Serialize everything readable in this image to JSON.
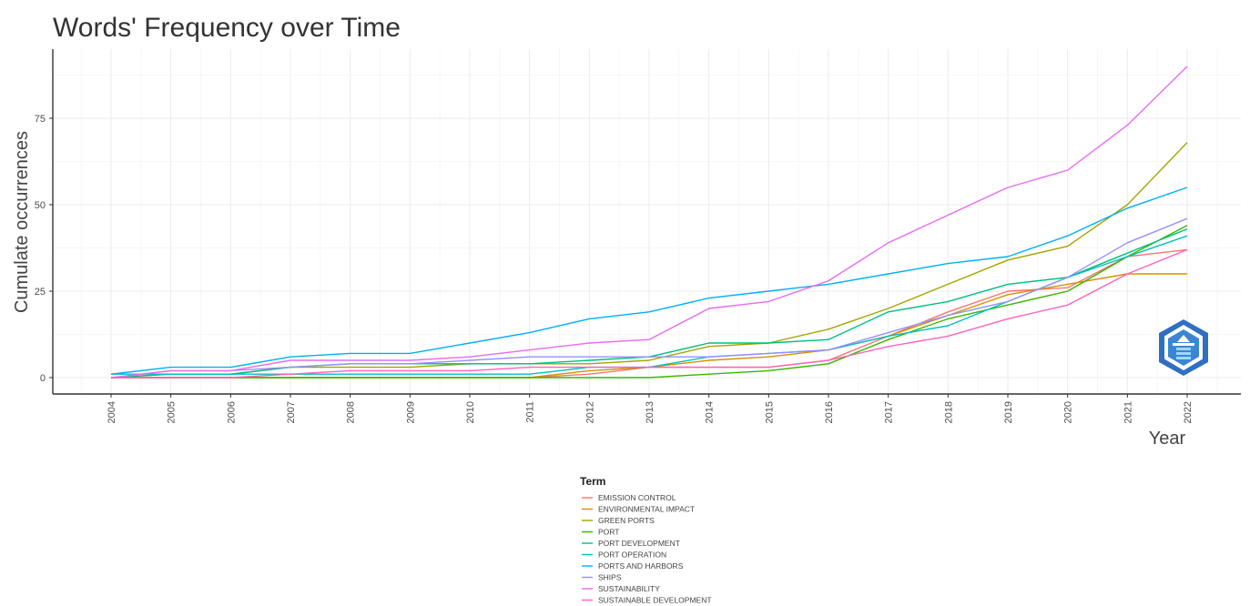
{
  "chart_data": {
    "type": "line",
    "title": "Words' Frequency over Time",
    "xlabel": "Year",
    "ylabel": "Cumulate occurrences",
    "x": [
      2004,
      2005,
      2006,
      2007,
      2008,
      2009,
      2010,
      2011,
      2012,
      2013,
      2014,
      2015,
      2016,
      2017,
      2018,
      2019,
      2020,
      2021,
      2022
    ],
    "x_tick_labels": [
      "2004",
      "2005",
      "2006",
      "2007",
      "2008",
      "2009",
      "2010",
      "2011",
      "2012",
      "2013",
      "2014",
      "2015",
      "2016",
      "2017",
      "2018",
      "2019",
      "2020",
      "2021",
      "2022"
    ],
    "ylim": [
      -5,
      95
    ],
    "y_ticks": [
      0,
      25,
      50,
      75
    ],
    "y_tick_labels": [
      "0",
      "25",
      "50",
      "75"
    ],
    "grid": true,
    "legend": {
      "title": "Term",
      "placement": "bottom"
    },
    "series": [
      {
        "name": "EMISSION CONTROL",
        "color": "#F8766D",
        "values": [
          0,
          0,
          0,
          0,
          0,
          0,
          0,
          0,
          1,
          3,
          3,
          3,
          5,
          12,
          19,
          25,
          26,
          35,
          37
        ]
      },
      {
        "name": "ENVIRONMENTAL IMPACT",
        "color": "#D89000",
        "values": [
          0,
          0,
          0,
          0,
          0,
          0,
          0,
          0,
          2,
          3,
          5,
          6,
          8,
          12,
          18,
          24,
          27,
          30,
          30
        ]
      },
      {
        "name": "GREEN PORTS",
        "color": "#A3A500",
        "values": [
          0,
          1,
          1,
          3,
          3,
          3,
          4,
          4,
          4,
          5,
          9,
          10,
          14,
          20,
          27,
          34,
          38,
          50,
          68
        ]
      },
      {
        "name": "PORT",
        "color": "#39B600",
        "values": [
          0,
          0,
          0,
          0,
          0,
          0,
          0,
          0,
          0,
          0,
          1,
          2,
          4,
          11,
          17,
          21,
          25,
          35,
          44
        ]
      },
      {
        "name": "PORT DEVELOPMENT",
        "color": "#00BF7D",
        "values": [
          0,
          1,
          1,
          3,
          4,
          4,
          4,
          4,
          5,
          6,
          10,
          10,
          11,
          19,
          22,
          27,
          29,
          36,
          43
        ]
      },
      {
        "name": "PORT OPERATION",
        "color": "#00BFC4",
        "values": [
          1,
          1,
          1,
          1,
          1,
          1,
          1,
          1,
          3,
          3,
          6,
          7,
          8,
          12,
          15,
          22,
          29,
          35,
          41
        ]
      },
      {
        "name": "PORTS AND HARBORS",
        "color": "#00B0F6",
        "values": [
          1,
          3,
          3,
          6,
          7,
          7,
          10,
          13,
          17,
          19,
          23,
          25,
          27,
          30,
          33,
          35,
          41,
          49,
          55
        ]
      },
      {
        "name": "SHIPS",
        "color": "#9590FF",
        "values": [
          0,
          2,
          2,
          3,
          4,
          4,
          5,
          6,
          6,
          6,
          6,
          7,
          8,
          13,
          18,
          22,
          29,
          39,
          46
        ]
      },
      {
        "name": "SUSTAINABILITY",
        "color": "#E76BF3",
        "values": [
          0,
          2,
          2,
          5,
          5,
          5,
          6,
          8,
          10,
          11,
          20,
          22,
          28,
          39,
          47,
          55,
          60,
          73,
          90
        ]
      },
      {
        "name": "SUSTAINABLE DEVELOPMENT",
        "color": "#FF62BC",
        "values": [
          0,
          0,
          0,
          1,
          2,
          2,
          2,
          3,
          3,
          3,
          3,
          3,
          5,
          9,
          12,
          17,
          21,
          30,
          37
        ]
      }
    ]
  }
}
